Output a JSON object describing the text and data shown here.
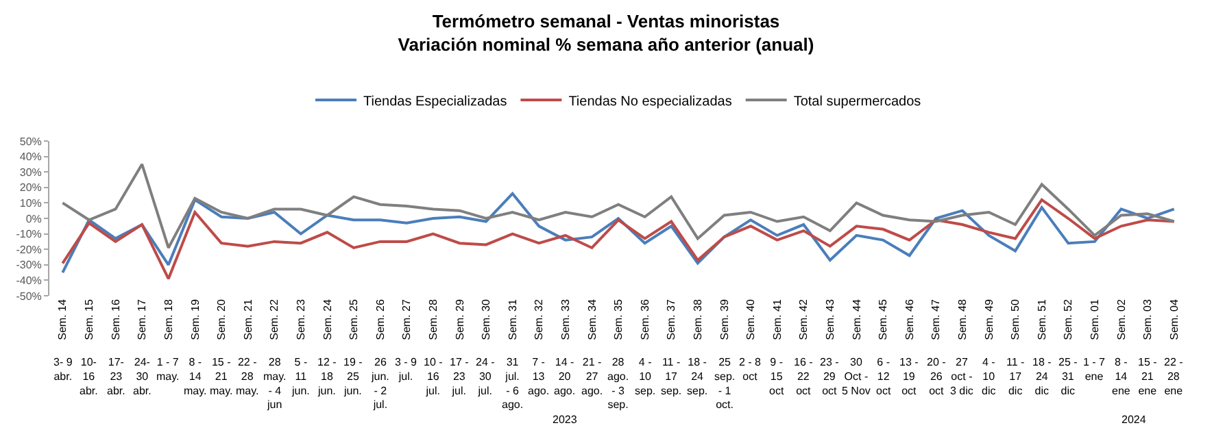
{
  "chart_data": {
    "type": "line",
    "title": "Termómetro semanal - Ventas minoristas",
    "subtitle": "Variación nominal % semana año anterior (anual)",
    "categories": [
      "Sem. 14",
      "Sem. 15",
      "Sem. 16",
      "Sem. 17",
      "Sem. 18",
      "Sem. 19",
      "Sem. 20",
      "Sem. 21",
      "Sem. 22",
      "Sem. 23",
      "Sem. 24",
      "Sem. 25",
      "Sem. 26",
      "Sem. 27",
      "Sem. 28",
      "Sem. 29",
      "Sem. 30",
      "Sem. 31",
      "Sem. 32",
      "Sem. 33",
      "Sem. 34",
      "Sem. 35",
      "Sem. 36",
      "Sem. 37",
      "Sem. 38",
      "Sem. 39",
      "Sem. 40",
      "Sem. 41",
      "Sem. 42",
      "Sem. 43",
      "Sem. 44",
      "Sem. 45",
      "Sem. 46",
      "Sem. 47",
      "Sem. 48",
      "Sem. 49",
      "Sem. 50",
      "Sem. 51",
      "Sem. 52",
      "Sem. 01",
      "Sem. 02",
      "Sem. 03",
      "Sem. 04"
    ],
    "annotations": [
      "3- 9 abr.",
      "10- 16 abr.",
      "17- 23 abr.",
      "24- 30 abr.",
      "1 - 7 may.",
      "8 - 14 may.",
      "15 - 21 may.",
      "22 - 28 may.",
      "28 may. - 4 jun",
      "5 - 11 jun.",
      "12 - 18 jun.",
      "19 - 25 jun.",
      "26 jun. - 2 jul.",
      "3 - 9 jul.",
      "10 - 16 jul.",
      "17 - 23 jul.",
      "24 - 30 jul.",
      "31 jul. - 6 ago.",
      "7 - 13 ago.",
      "14 - 20 ago.",
      "21 - 27 ago.",
      "28 ago. - 3 sep.",
      "4 - 10 sep.",
      "11 - 17 sep.",
      "18 - 24 sep.",
      "25 sep. - 1 oct.",
      "2 - 8 oct",
      "9 - 15 oct",
      "16 - 22 oct",
      "23 - 29 oct",
      "30 Oct - 5 Nov",
      "6 - 12 oct",
      "13 - 19 oct",
      "20 - 26 oct",
      "27 oct - 3 dic",
      "4 - 10 dic",
      "11 - 17 dic",
      "18 - 24 dic",
      "25 - 31 dic",
      "1 - 7 ene",
      "8 - 14 ene",
      "15 - 21 ene",
      "22 - 28 ene",
      "2023",
      "2024"
    ],
    "series": [
      {
        "name": "Tiendas Especializadas",
        "color": "#4a7ebb",
        "values": [
          -35,
          -1,
          -13,
          -4,
          -30,
          12,
          1,
          0,
          4,
          -10,
          2,
          -1,
          -1,
          -3,
          0,
          1,
          -2,
          16,
          -5,
          -14,
          -12,
          0,
          -16,
          -5,
          -29,
          -12,
          -1,
          -11,
          -4,
          -27,
          -11,
          -14,
          -24,
          0,
          5,
          -11,
          -21,
          7,
          -16,
          -15,
          6,
          0,
          6
        ]
      },
      {
        "name": "Tiendas No especializadas",
        "color": "#be4b48",
        "values": [
          -29,
          -3,
          -15,
          -4,
          -39,
          4,
          -16,
          -18,
          -15,
          -16,
          -9,
          -19,
          -15,
          -15,
          -10,
          -16,
          -17,
          -10,
          -16,
          -11,
          -19,
          -1,
          -13,
          -2,
          -27,
          -12,
          -5,
          -14,
          -8,
          -18,
          -5,
          -7,
          -14,
          -1,
          -4,
          -9,
          -13,
          12,
          0,
          -13,
          -5,
          -1,
          -2
        ]
      },
      {
        "name": "Total supermercados",
        "color": "#7f7f7f",
        "values": [
          10,
          -1,
          6,
          35,
          -19,
          13,
          4,
          0,
          6,
          6,
          2,
          14,
          9,
          8,
          6,
          5,
          0,
          4,
          -1,
          4,
          1,
          9,
          1,
          14,
          -13,
          2,
          4,
          -2,
          1,
          -8,
          10,
          2,
          -1,
          -2,
          2,
          4,
          -4,
          22,
          6,
          -11,
          2,
          3,
          -2
        ]
      }
    ],
    "ylim": [
      -50,
      50
    ],
    "yticks": [
      {
        "value": -50,
        "label": "-50%"
      },
      {
        "value": -40,
        "label": "-40%"
      },
      {
        "value": -30,
        "label": "-30%"
      },
      {
        "value": -20,
        "label": "-20%"
      },
      {
        "value": -10,
        "label": "-10%"
      },
      {
        "value": 0,
        "label": "0%"
      },
      {
        "value": 10,
        "label": "10%"
      },
      {
        "value": 20,
        "label": "20%"
      },
      {
        "value": 30,
        "label": "30%"
      },
      {
        "value": 40,
        "label": "40%"
      },
      {
        "value": 50,
        "label": "50%"
      }
    ],
    "legend": "top",
    "marker": "none",
    "line_style": "solid"
  }
}
